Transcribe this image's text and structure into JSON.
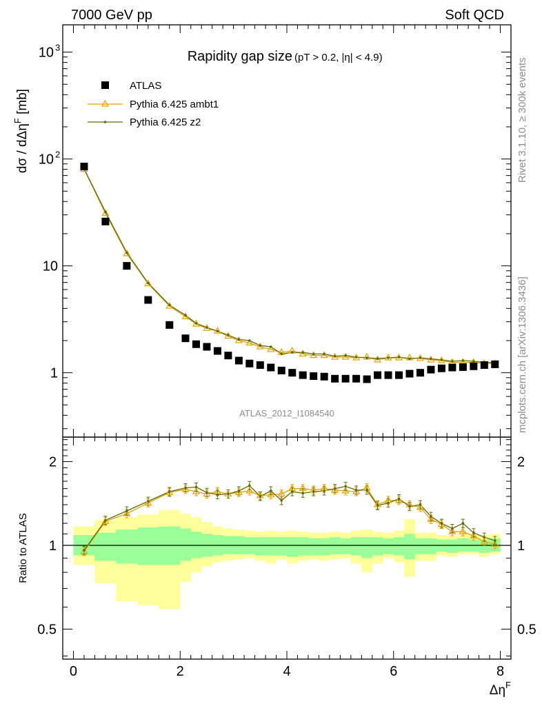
{
  "header": {
    "left": "7000 GeV pp",
    "right": "Soft QCD"
  },
  "side_labels": {
    "rivet": "Rivet 3.1.10, ≥ 300k events",
    "mcplots": "mcplots.cern.ch [arXiv:1306.3436]"
  },
  "watermark": "ATLAS_2012_I1084540",
  "colors": {
    "atlas": "#000000",
    "ambt1": "#e8a000",
    "z2": "#5c6a00",
    "band_outer": "#ffff99",
    "band_inner": "#99ff99"
  },
  "chart_data": [
    {
      "type": "scatter",
      "title": "Rapidity gap size",
      "title_suffix": "(pT > 0.2, |η| < 4.9)",
      "ylabel": "dσ / dΔη",
      "ylabel_sup": "F",
      "ylabel_unit": " [mb]",
      "yscale": "log",
      "ylim": [
        0.25,
        1800
      ],
      "xlim": [
        -0.2,
        8.2
      ],
      "yticks": [
        {
          "value": 1,
          "label": "1"
        },
        {
          "value": 10,
          "label": "10"
        },
        {
          "value": 100,
          "label": "10",
          "sup": "2"
        },
        {
          "value": 1000,
          "label": "10",
          "sup": "3"
        }
      ],
      "legend": {
        "placement": "top-left",
        "entries": [
          "ATLAS",
          "Pythia 6.425 ambt1",
          "Pythia 6.425 z2"
        ]
      },
      "x": [
        0.2,
        0.6,
        1.0,
        1.4,
        1.8,
        2.1,
        2.3,
        2.5,
        2.7,
        2.9,
        3.1,
        3.3,
        3.5,
        3.7,
        3.9,
        4.1,
        4.3,
        4.5,
        4.7,
        4.9,
        5.1,
        5.3,
        5.5,
        5.7,
        5.9,
        6.1,
        6.3,
        6.5,
        6.7,
        6.9,
        7.1,
        7.3,
        7.5,
        7.7,
        7.9
      ],
      "series": [
        {
          "name": "ATLAS",
          "values": [
            85,
            26,
            10,
            4.8,
            2.8,
            2.1,
            1.85,
            1.75,
            1.6,
            1.45,
            1.3,
            1.22,
            1.18,
            1.12,
            1.05,
            1.0,
            0.95,
            0.93,
            0.92,
            0.88,
            0.88,
            0.88,
            0.87,
            0.95,
            0.95,
            0.95,
            0.98,
            1.0,
            1.07,
            1.1,
            1.12,
            1.13,
            1.15,
            1.18,
            1.2
          ]
        },
        {
          "name": "Pythia 6.425 ambt1",
          "values": [
            80,
            31,
            13,
            6.8,
            4.2,
            3.35,
            2.85,
            2.6,
            2.45,
            2.2,
            2.0,
            1.9,
            1.75,
            1.65,
            1.55,
            1.6,
            1.5,
            1.45,
            1.45,
            1.4,
            1.4,
            1.38,
            1.4,
            1.32,
            1.38,
            1.38,
            1.38,
            1.36,
            1.32,
            1.3,
            1.25,
            1.25,
            1.25,
            1.22,
            1.22
          ]
        },
        {
          "name": "Pythia 6.425 z2",
          "values": [
            81,
            32,
            13.3,
            6.9,
            4.3,
            3.45,
            2.9,
            2.65,
            2.45,
            2.25,
            2.05,
            2.0,
            1.8,
            1.75,
            1.5,
            1.55,
            1.55,
            1.5,
            1.5,
            1.43,
            1.45,
            1.4,
            1.38,
            1.36,
            1.38,
            1.4,
            1.35,
            1.38,
            1.35,
            1.32,
            1.28,
            1.3,
            1.28,
            1.25,
            1.25
          ]
        }
      ]
    },
    {
      "type": "line",
      "ylabel": "Ratio to ATLAS",
      "xlabel": "Δη",
      "xlabel_sup": "F",
      "ylim": [
        0.39,
        2.45
      ],
      "xlim": [
        -0.2,
        8.2
      ],
      "xticks": [
        0,
        2,
        4,
        6,
        8
      ],
      "yticks": [
        {
          "value": 0.5,
          "label": "0.5"
        },
        {
          "value": 1,
          "label": "1"
        },
        {
          "value": 2,
          "label": "2"
        }
      ],
      "x": [
        0.2,
        0.6,
        1.0,
        1.4,
        1.8,
        2.1,
        2.3,
        2.5,
        2.7,
        2.9,
        3.1,
        3.3,
        3.5,
        3.7,
        3.9,
        4.1,
        4.3,
        4.5,
        4.7,
        4.9,
        5.1,
        5.3,
        5.5,
        5.7,
        5.9,
        6.1,
        6.3,
        6.5,
        6.7,
        6.9,
        7.1,
        7.3,
        7.5,
        7.7,
        7.9
      ],
      "band_edges": [
        0.0,
        0.4,
        0.8,
        1.2,
        1.6,
        2.0,
        2.2,
        2.4,
        2.6,
        2.8,
        3.0,
        3.2,
        3.4,
        3.6,
        3.8,
        4.0,
        4.2,
        4.4,
        4.6,
        4.8,
        5.0,
        5.2,
        5.4,
        5.6,
        5.8,
        6.0,
        6.2,
        6.4,
        6.6,
        6.8,
        7.0,
        7.2,
        7.4,
        7.6,
        7.8,
        8.0
      ],
      "total_uncertainty": {
        "lo": [
          0.85,
          0.73,
          0.63,
          0.61,
          0.59,
          0.74,
          0.8,
          0.84,
          0.87,
          0.88,
          0.89,
          0.9,
          0.88,
          0.86,
          0.89,
          0.86,
          0.88,
          0.89,
          0.88,
          0.89,
          0.9,
          0.86,
          0.8,
          0.86,
          0.9,
          0.87,
          0.77,
          0.88,
          0.88,
          0.92,
          0.91,
          0.93,
          0.93,
          0.91,
          0.93
        ],
        "hi": [
          1.17,
          1.23,
          1.26,
          1.29,
          1.34,
          1.3,
          1.26,
          1.21,
          1.17,
          1.15,
          1.14,
          1.13,
          1.12,
          1.13,
          1.12,
          1.13,
          1.12,
          1.11,
          1.11,
          1.12,
          1.11,
          1.13,
          1.14,
          1.12,
          1.11,
          1.13,
          1.24,
          1.11,
          1.11,
          1.09,
          1.08,
          1.1,
          1.09,
          1.09,
          1.1
        ]
      },
      "stat_uncertainty": {
        "lo": [
          0.92,
          0.88,
          0.86,
          0.85,
          0.85,
          0.88,
          0.9,
          0.91,
          0.92,
          0.93,
          0.93,
          0.93,
          0.92,
          0.92,
          0.92,
          0.91,
          0.92,
          0.92,
          0.92,
          0.93,
          0.93,
          0.92,
          0.9,
          0.92,
          0.93,
          0.92,
          0.89,
          0.93,
          0.93,
          0.95,
          0.94,
          0.95,
          0.95,
          0.94,
          0.95
        ],
        "hi": [
          1.09,
          1.11,
          1.14,
          1.16,
          1.17,
          1.15,
          1.12,
          1.1,
          1.09,
          1.08,
          1.08,
          1.07,
          1.07,
          1.07,
          1.07,
          1.07,
          1.07,
          1.06,
          1.06,
          1.07,
          1.06,
          1.07,
          1.07,
          1.07,
          1.06,
          1.07,
          1.1,
          1.06,
          1.06,
          1.05,
          1.05,
          1.06,
          1.05,
          1.05,
          1.06
        ]
      },
      "series": [
        {
          "name": "Pythia 6.425 ambt1",
          "values": [
            0.95,
            1.22,
            1.3,
            1.42,
            1.55,
            1.59,
            1.56,
            1.53,
            1.56,
            1.53,
            1.55,
            1.57,
            1.51,
            1.52,
            1.53,
            1.6,
            1.6,
            1.58,
            1.6,
            1.58,
            1.57,
            1.56,
            1.61,
            1.4,
            1.45,
            1.45,
            1.4,
            1.37,
            1.24,
            1.19,
            1.12,
            1.12,
            1.08,
            1.03,
            1.01
          ]
        },
        {
          "name": "Pythia 6.425 z2",
          "values": [
            0.96,
            1.23,
            1.33,
            1.44,
            1.56,
            1.61,
            1.62,
            1.55,
            1.52,
            1.53,
            1.57,
            1.64,
            1.5,
            1.57,
            1.45,
            1.56,
            1.54,
            1.56,
            1.57,
            1.6,
            1.63,
            1.58,
            1.58,
            1.39,
            1.42,
            1.47,
            1.38,
            1.4,
            1.27,
            1.2,
            1.15,
            1.2,
            1.11,
            1.07,
            1.04
          ]
        }
      ]
    }
  ]
}
